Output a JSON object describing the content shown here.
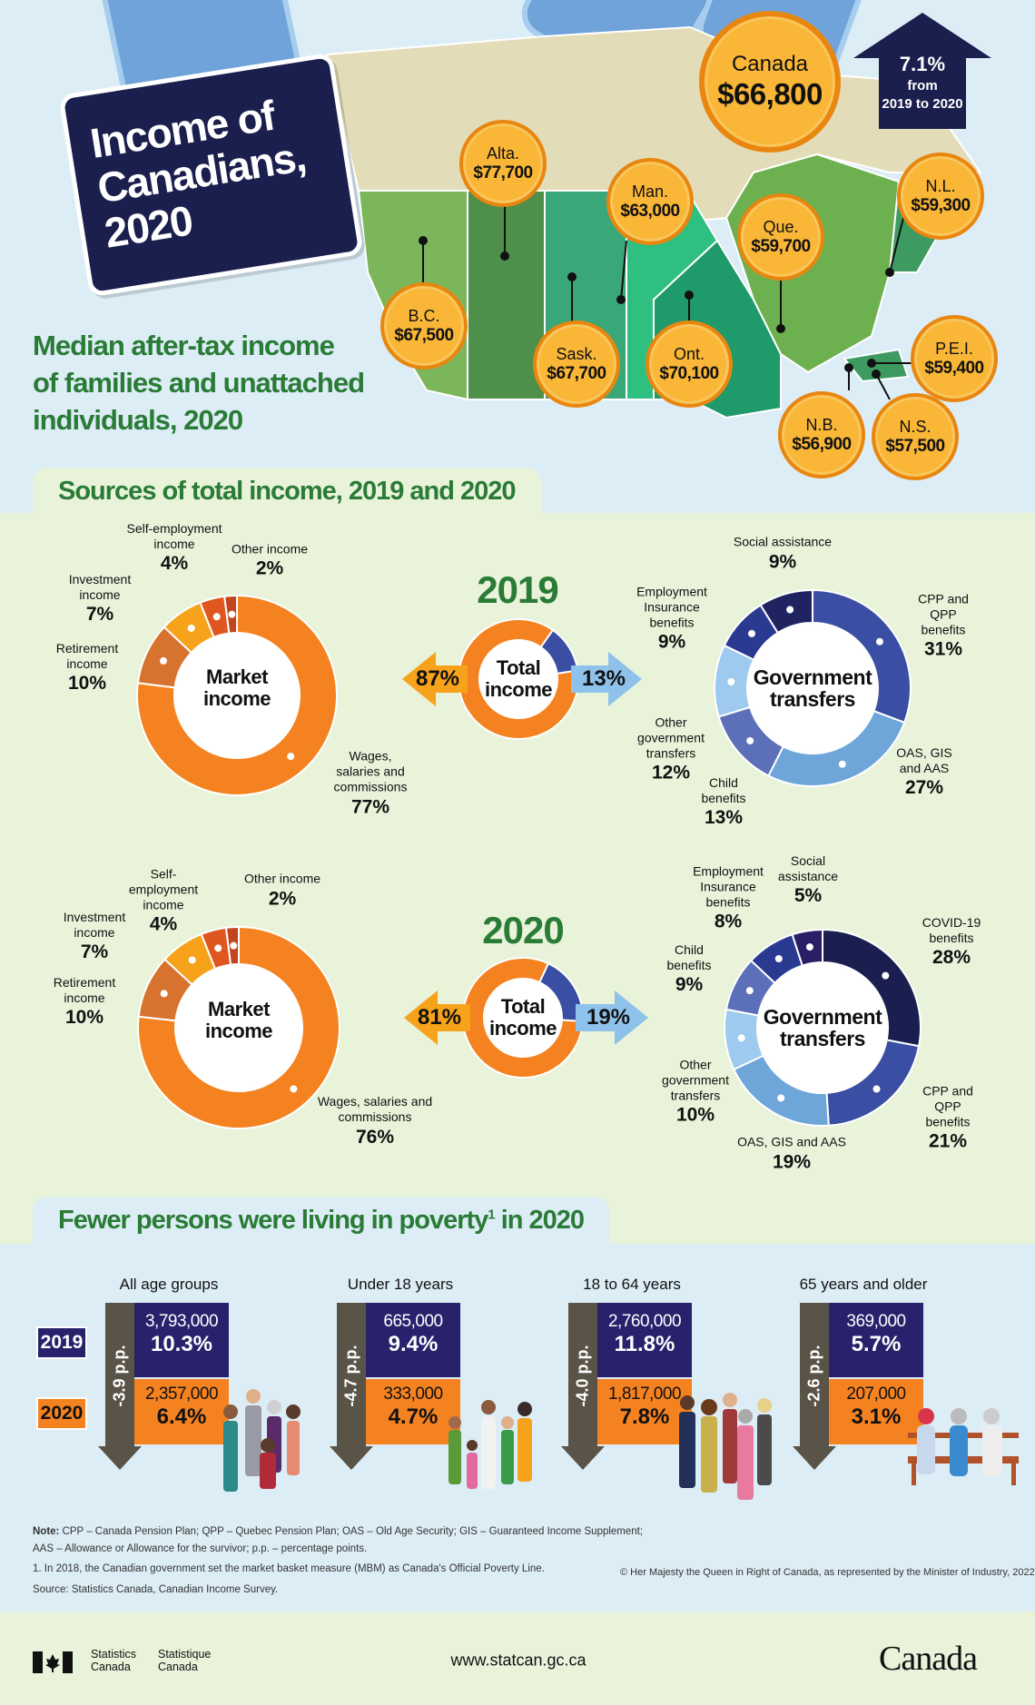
{
  "header": {
    "title_lines": [
      "Income of",
      "Canadians,",
      "2020"
    ],
    "subtitle_lines": [
      "Median after-tax income",
      "of families and unattached",
      "individuals, 2020"
    ],
    "canada": {
      "name": "Canada",
      "value": "$66,800"
    },
    "change": {
      "pct": "7.1%",
      "from": "from",
      "period": "2019 to 2020",
      "direction": "up"
    },
    "provinces": [
      {
        "name": "Alta.",
        "value": "$77,700"
      },
      {
        "name": "Man.",
        "value": "$63,000"
      },
      {
        "name": "Que.",
        "value": "$59,700"
      },
      {
        "name": "N.L.",
        "value": "$59,300"
      },
      {
        "name": "B.C.",
        "value": "$67,500"
      },
      {
        "name": "Sask.",
        "value": "$67,700"
      },
      {
        "name": "Ont.",
        "value": "$70,100"
      },
      {
        "name": "P.E.I.",
        "value": "$59,400"
      },
      {
        "name": "N.B.",
        "value": "$56,900"
      },
      {
        "name": "N.S.",
        "value": "$57,500"
      }
    ]
  },
  "sources": {
    "heading": "Sources of total income, 2019 and 2020",
    "center_market": [
      "Market",
      "income"
    ],
    "center_total": [
      "Total",
      "income"
    ],
    "center_gov": [
      "Government",
      "transfers"
    ]
  },
  "chart_data": [
    {
      "type": "pie",
      "year": "2019",
      "name": "Market income",
      "labels": [
        "Wages, salaries and commissions",
        "Retirement income",
        "Investment income",
        "Self-employment income",
        "Other income"
      ],
      "values": [
        77,
        10,
        7,
        4,
        2
      ],
      "colors": [
        "#f58220",
        "#d8732f",
        "#f7a21b",
        "#e0561f",
        "#c2451f"
      ]
    },
    {
      "type": "pie",
      "year": "2019",
      "name": "Total income",
      "labels": [
        "Market income",
        "Government transfers"
      ],
      "values": [
        87,
        13
      ],
      "colors": [
        "#f58220",
        "#3a4fa3"
      ]
    },
    {
      "type": "pie",
      "year": "2019",
      "name": "Government transfers",
      "labels": [
        "CPP and QPP benefits",
        "OAS, GIS and AAS",
        "Child benefits",
        "Other government transfers",
        "Employment Insurance benefits",
        "Social assistance"
      ],
      "values": [
        31,
        27,
        13,
        12,
        9,
        9
      ],
      "colors": [
        "#3a4fa3",
        "#6ea6da",
        "#5b70b8",
        "#9dcaee",
        "#2a3a91",
        "#1f2460"
      ]
    },
    {
      "type": "pie",
      "year": "2020",
      "name": "Market income",
      "labels": [
        "Wages, salaries and commissions",
        "Retirement income",
        "Investment income",
        "Self-employment income",
        "Other income"
      ],
      "values": [
        76,
        10,
        7,
        4,
        2
      ],
      "colors": [
        "#f58220",
        "#d8732f",
        "#f7a21b",
        "#e0561f",
        "#c2451f"
      ]
    },
    {
      "type": "pie",
      "year": "2020",
      "name": "Total income",
      "labels": [
        "Market income",
        "Government transfers"
      ],
      "values": [
        81,
        19
      ],
      "colors": [
        "#f58220",
        "#3a4fa3"
      ]
    },
    {
      "type": "pie",
      "year": "2020",
      "name": "Government transfers",
      "labels": [
        "COVID-19 benefits",
        "CPP and QPP benefits",
        "OAS, GIS and AAS",
        "Other government transfers",
        "Child benefits",
        "Employment Insurance benefits",
        "Social assistance"
      ],
      "values": [
        28,
        21,
        19,
        10,
        9,
        8,
        5
      ],
      "colors": [
        "#1b1f4f",
        "#3a4fa3",
        "#6ea6da",
        "#9dcaee",
        "#5b70b8",
        "#2a3a91",
        "#2a1f66"
      ]
    }
  ],
  "labels2019": {
    "market": [
      [
        "Self-employment",
        "income",
        "4%"
      ],
      [
        "Other income",
        "",
        "2%"
      ],
      [
        "Investment",
        "income",
        "7%"
      ],
      [
        "Retirement",
        "income",
        "10%"
      ],
      [
        "Wages,",
        "salaries and",
        "commissions",
        "77%"
      ]
    ],
    "gov": [
      [
        "Social assistance",
        "9%"
      ],
      [
        "Employment",
        "Insurance",
        "benefits",
        "9%"
      ],
      [
        "CPP and",
        "QPP",
        "benefits",
        "31%"
      ],
      [
        "Other",
        "government",
        "transfers",
        "12%"
      ],
      [
        "Child",
        "benefits",
        "13%"
      ],
      [
        "OAS, GIS",
        "and AAS",
        "27%"
      ]
    ],
    "market_share": "87%",
    "gov_share": "13%"
  },
  "labels2020": {
    "market": [
      [
        "Self-",
        "employment",
        "income",
        "4%"
      ],
      [
        "Other income",
        "2%"
      ],
      [
        "Investment",
        "income",
        "7%"
      ],
      [
        "Retirement",
        "income",
        "10%"
      ],
      [
        "Wages, salaries and",
        "commissions",
        "76%"
      ]
    ],
    "gov": [
      [
        "Social",
        "assistance",
        "5%"
      ],
      [
        "Employment",
        "Insurance",
        "benefits",
        "8%"
      ],
      [
        "Child",
        "benefits",
        "9%"
      ],
      [
        "COVID-19",
        "benefits",
        "28%"
      ],
      [
        "Other",
        "government",
        "transfers",
        "10%"
      ],
      [
        "OAS, GIS and AAS",
        "19%"
      ],
      [
        "CPP and",
        "QPP",
        "benefits",
        "21%"
      ]
    ],
    "market_share": "81%",
    "gov_share": "19%"
  },
  "poverty": {
    "heading": "Fewer persons were living in poverty",
    "heading_sup": "1",
    "heading_end": "in 2020",
    "year_labels": [
      "2019",
      "2020"
    ],
    "groups": [
      {
        "label": "All age groups",
        "change": "-3.9 p.p.",
        "y2019_count": "3,793,000",
        "y2019_rate": "10.3%",
        "y2020_count": "2,357,000",
        "y2020_rate": "6.4%"
      },
      {
        "label": "Under 18 years",
        "change": "-4.7 p.p.",
        "y2019_count": "665,000",
        "y2019_rate": "9.4%",
        "y2020_count": "333,000",
        "y2020_rate": "4.7%"
      },
      {
        "label": "18 to 64 years",
        "change": "-4.0 p.p.",
        "y2019_count": "2,760,000",
        "y2019_rate": "11.8%",
        "y2020_count": "1,817,000",
        "y2020_rate": "7.8%"
      },
      {
        "label": "65 years and older",
        "change": "-2.6 p.p.",
        "y2019_count": "369,000",
        "y2019_rate": "5.7%",
        "y2020_count": "207,000",
        "y2020_rate": "3.1%"
      }
    ]
  },
  "notes": {
    "note_label": "Note:",
    "note_line1": " CPP – Canada Pension Plan; QPP – Quebec Pension Plan; OAS – Old Age Security; GIS – Guaranteed Income Supplement;",
    "note_line2": "AAS – Allowance or Allowance for the survivor; p.p. – percentage points.",
    "footnote": "1. In 2018, the Canadian government set the market basket measure (MBM) as Canada's Official Poverty Line.",
    "source": "Source: Statistics Canada, Canadian Income Survey.",
    "copyright": "© Her Majesty the Queen in Right of Canada, as represented by the Minister of Industry, 2022"
  },
  "footer": {
    "agency_en": [
      "Statistics",
      "Canada"
    ],
    "agency_fr": [
      "Statistique",
      "Canada"
    ],
    "url": "www.statcan.gc.ca",
    "wordmark": "Canada"
  }
}
